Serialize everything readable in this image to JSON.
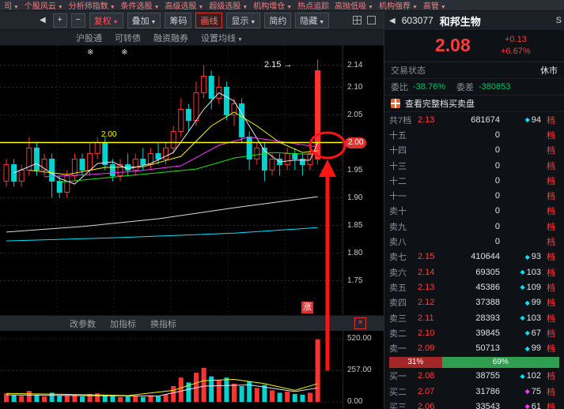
{
  "top_menu": {
    "arrow": "▼",
    "items": [
      {
        "label": "司",
        "arrow": true
      },
      {
        "label": "个股风云",
        "arrow": true
      },
      {
        "label": "分析师指数",
        "arrow": true
      },
      {
        "label": "条件选股",
        "arrow": true
      },
      {
        "label": "高级选股",
        "arrow": true
      },
      {
        "label": "超级选股",
        "arrow": true
      },
      {
        "label": "机构增仓",
        "arrow": true
      },
      {
        "label": "热点追踪",
        "arrow": false
      },
      {
        "label": "高抛低吸",
        "arrow": true
      },
      {
        "label": "机构强荐",
        "arrow": true
      },
      {
        "label": "高管",
        "arrow": true
      }
    ]
  },
  "toolbar": {
    "back_icon": "◀",
    "zoom_in": "+",
    "zoom_out": "−",
    "buttons": [
      {
        "label": "复权",
        "arrow": true,
        "accent": "red-text",
        "name": "fuquan-button"
      },
      {
        "label": "叠加",
        "arrow": true,
        "name": "overlay-button"
      },
      {
        "label": "筹码",
        "arrow": false,
        "name": "chips-button"
      },
      {
        "label": "画线",
        "arrow": false,
        "accent": "red-border",
        "name": "draw-line-button"
      },
      {
        "label": "显示",
        "arrow": true,
        "name": "display-button"
      },
      {
        "label": "简约",
        "arrow": false,
        "name": "simple-mode-button"
      },
      {
        "label": "隐藏",
        "arrow": true,
        "name": "hide-button"
      }
    ]
  },
  "subnav": {
    "arrow": "▼",
    "items": [
      {
        "label": "沪股通",
        "name": "subnav-hugutong"
      },
      {
        "label": "可转债",
        "name": "subnav-convertible-bond"
      },
      {
        "label": "融资融券",
        "name": "subnav-margin-trading"
      }
    ],
    "ma_button": "设置均线"
  },
  "chart": {
    "stars": "※ ※",
    "high_text": "2.15",
    "high_arrow": "→",
    "line_label": "2.00",
    "rise_badge": "涨",
    "hline": {
      "price": 2.0,
      "color": "#ffff00"
    },
    "axis": [
      {
        "t": "2.14",
        "p": 2.14
      },
      {
        "t": "2.10",
        "p": 2.1
      },
      {
        "t": "2.05",
        "p": 2.05
      },
      {
        "t": "2.00",
        "p": 2.0,
        "hl": true
      },
      {
        "t": "1.95",
        "p": 1.95
      },
      {
        "t": "1.90",
        "p": 1.9
      },
      {
        "t": "1.85",
        "p": 1.85
      },
      {
        "t": "1.80",
        "p": 1.8
      },
      {
        "t": "1.75",
        "p": 1.75
      }
    ],
    "candles": [
      [
        1.93,
        1.96,
        1.92,
        1.97
      ],
      [
        1.96,
        1.93,
        1.92,
        1.97
      ],
      [
        1.93,
        1.95,
        1.92,
        1.96
      ],
      [
        1.95,
        1.99,
        1.94,
        2.01
      ],
      [
        1.99,
        1.95,
        1.94,
        2.0
      ],
      [
        1.95,
        1.97,
        1.94,
        1.98
      ],
      [
        1.97,
        1.93,
        1.9,
        1.98
      ],
      [
        1.93,
        1.91,
        1.9,
        1.94
      ],
      [
        1.91,
        1.94,
        1.9,
        1.95
      ],
      [
        1.94,
        1.97,
        1.93,
        1.98
      ],
      [
        1.97,
        1.95,
        1.94,
        1.98
      ],
      [
        1.95,
        1.98,
        1.94,
        2.0
      ],
      [
        1.98,
        2.0,
        1.97,
        2.01
      ],
      [
        2.0,
        1.96,
        1.95,
        2.01
      ],
      [
        1.96,
        1.94,
        1.93,
        1.97
      ],
      [
        1.94,
        1.96,
        1.93,
        1.97
      ],
      [
        1.96,
        1.95,
        1.94,
        1.98
      ],
      [
        1.95,
        1.97,
        1.94,
        1.98
      ],
      [
        1.97,
        1.96,
        1.95,
        1.99
      ],
      [
        1.96,
        1.98,
        1.95,
        1.99
      ],
      [
        1.98,
        1.97,
        1.96,
        2.0
      ],
      [
        1.97,
        1.99,
        1.96,
        2.0
      ],
      [
        1.99,
        2.02,
        1.98,
        2.03
      ],
      [
        2.02,
        2.06,
        2.01,
        2.08
      ],
      [
        2.06,
        2.04,
        2.02,
        2.07
      ],
      [
        2.04,
        2.09,
        2.03,
        2.11
      ],
      [
        2.09,
        2.12,
        2.08,
        2.14
      ],
      [
        2.12,
        2.08,
        2.06,
        2.13
      ],
      [
        2.08,
        2.1,
        2.07,
        2.12
      ],
      [
        2.1,
        2.05,
        2.04,
        2.11
      ],
      [
        2.05,
        2.07,
        2.03,
        2.08
      ],
      [
        2.07,
        2.01,
        2.0,
        2.08
      ],
      [
        2.01,
        1.97,
        1.95,
        2.02
      ],
      [
        1.97,
        1.99,
        1.96,
        2.0
      ],
      [
        1.99,
        1.95,
        1.93,
        2.0
      ],
      [
        1.95,
        1.97,
        1.94,
        1.98
      ],
      [
        1.97,
        1.96,
        1.94,
        1.98
      ],
      [
        1.96,
        1.98,
        1.95,
        1.99
      ],
      [
        1.98,
        1.97,
        1.95,
        1.99
      ],
      [
        1.97,
        1.96,
        1.94,
        1.98
      ],
      [
        1.96,
        1.98,
        1.95,
        1.99
      ],
      [
        1.97,
        2.13,
        1.96,
        2.15
      ]
    ],
    "ma_polylines": [
      {
        "color": "#e8e8e8",
        "pts": [
          [
            1,
            1.945
          ],
          [
            4,
            1.962
          ],
          [
            7,
            1.935
          ],
          [
            9,
            1.925
          ],
          [
            12,
            1.962
          ],
          [
            14,
            1.965
          ],
          [
            16,
            1.952
          ],
          [
            19,
            1.962
          ],
          [
            22,
            1.982
          ],
          [
            24,
            2.02
          ],
          [
            26,
            2.06
          ],
          [
            28,
            2.09
          ],
          [
            30,
            2.075
          ],
          [
            32,
            2.03
          ],
          [
            34,
            1.985
          ],
          [
            36,
            1.965
          ],
          [
            38,
            1.968
          ],
          [
            40,
            1.968
          ],
          [
            41,
            2.0
          ]
        ]
      },
      {
        "color": "#f5f500",
        "pts": [
          [
            3,
            1.95
          ],
          [
            8,
            1.942
          ],
          [
            13,
            1.955
          ],
          [
            18,
            1.956
          ],
          [
            23,
            1.975
          ],
          [
            27,
            2.03
          ],
          [
            30,
            2.055
          ],
          [
            33,
            2.03
          ],
          [
            36,
            2.0
          ],
          [
            39,
            1.982
          ],
          [
            41,
            1.985
          ]
        ]
      },
      {
        "color": "#ff35ff",
        "pts": [
          [
            5,
            1.938
          ],
          [
            11,
            1.942
          ],
          [
            17,
            1.948
          ],
          [
            23,
            1.958
          ],
          [
            28,
            1.995
          ],
          [
            32,
            2.01
          ],
          [
            36,
            2.002
          ],
          [
            41,
            1.992
          ]
        ]
      },
      {
        "color": "#19e619",
        "pts": [
          [
            7,
            1.928
          ],
          [
            13,
            1.936
          ],
          [
            19,
            1.944
          ],
          [
            25,
            1.952
          ],
          [
            30,
            1.972
          ],
          [
            35,
            1.982
          ],
          [
            41,
            1.978
          ]
        ]
      },
      {
        "color": "#dcdcdc",
        "pts": [
          [
            0,
            1.838
          ],
          [
            10,
            1.848
          ],
          [
            20,
            1.862
          ],
          [
            30,
            1.882
          ],
          [
            41,
            1.902
          ]
        ]
      },
      {
        "color": "#00e5ff",
        "pts": [
          [
            0,
            1.822
          ],
          [
            15,
            1.828
          ],
          [
            30,
            1.836
          ],
          [
            41,
            1.846
          ]
        ]
      }
    ]
  },
  "bottom_bar": {
    "items": [
      "改参数",
      "加指标",
      "换指标"
    ],
    "close_icon": "×"
  },
  "volume": {
    "axis": [
      {
        "t": "520.00",
        "v": 520
      },
      {
        "t": "257.00",
        "v": 257
      },
      {
        "t": "0.00",
        "v": 0
      }
    ],
    "bars": [
      70,
      55,
      50,
      90,
      60,
      45,
      75,
      50,
      55,
      60,
      45,
      65,
      70,
      55,
      50,
      40,
      45,
      50,
      40,
      55,
      45,
      60,
      130,
      200,
      160,
      240,
      280,
      210,
      180,
      200,
      150,
      130,
      170,
      115,
      140,
      95,
      75,
      85,
      65,
      60,
      75,
      515
    ],
    "ma_polylines": [
      {
        "color": "#f5f500",
        "pts": [
          [
            0,
            70
          ],
          [
            8,
            62
          ],
          [
            16,
            52
          ],
          [
            22,
            95
          ],
          [
            26,
            175
          ],
          [
            30,
            185
          ],
          [
            34,
            150
          ],
          [
            38,
            95
          ],
          [
            41,
            150
          ]
        ]
      },
      {
        "color": "#e8e8e8",
        "pts": [
          [
            0,
            58
          ],
          [
            10,
            52
          ],
          [
            20,
            48
          ],
          [
            26,
            130
          ],
          [
            32,
            140
          ],
          [
            38,
            85
          ],
          [
            41,
            115
          ]
        ]
      }
    ]
  },
  "stock_header": {
    "back_icon": "◀",
    "code": "603077",
    "name": "和邦生物",
    "suffix": "S"
  },
  "quote": {
    "price": "2.08",
    "change": "+0.13",
    "change_pct": "+6.67%"
  },
  "status": {
    "label": "交易状态",
    "value": "休市"
  },
  "weibi": {
    "label": "委比",
    "value": "-38.76%",
    "label2": "委差",
    "value2": "-380853"
  },
  "full_levels_link": {
    "text": "查看完整档买卖盘"
  },
  "order_panel": {
    "marker": "档",
    "diamond": "◆",
    "summary": {
      "label": "共7档",
      "price": "2.13",
      "volume": "681674",
      "count": "94",
      "diamond_color": "cyan"
    },
    "sells": [
      {
        "label": "十五",
        "price": "",
        "volume": "0",
        "count": "",
        "diamond_color": null
      },
      {
        "label": "十四",
        "price": "",
        "volume": "0",
        "count": "",
        "diamond_color": null
      },
      {
        "label": "十三",
        "price": "",
        "volume": "0",
        "count": "",
        "diamond_color": null
      },
      {
        "label": "十二",
        "price": "",
        "volume": "0",
        "count": "",
        "diamond_color": null
      },
      {
        "label": "十一",
        "price": "",
        "volume": "0",
        "count": "",
        "diamond_color": null
      },
      {
        "label": "卖十",
        "price": "",
        "volume": "0",
        "count": "",
        "diamond_color": null
      },
      {
        "label": "卖九",
        "price": "",
        "volume": "0",
        "count": "",
        "diamond_color": null
      },
      {
        "label": "卖八",
        "price": "",
        "volume": "0",
        "count": "",
        "diamond_color": null
      },
      {
        "label": "卖七",
        "price": "2.15",
        "volume": "410644",
        "count": "93",
        "diamond_color": "cyan"
      },
      {
        "label": "卖六",
        "price": "2.14",
        "volume": "69305",
        "count": "103",
        "diamond_color": "cyan"
      },
      {
        "label": "卖五",
        "price": "2.13",
        "volume": "45386",
        "count": "109",
        "diamond_color": "cyan"
      },
      {
        "label": "卖四",
        "price": "2.12",
        "volume": "37388",
        "count": "99",
        "diamond_color": "cyan"
      },
      {
        "label": "卖三",
        "price": "2.11",
        "volume": "28393",
        "count": "103",
        "diamond_color": "cyan"
      },
      {
        "label": "卖二",
        "price": "2.10",
        "volume": "39845",
        "count": "67",
        "diamond_color": "cyan"
      },
      {
        "label": "卖一",
        "price": "2.09",
        "volume": "50713",
        "count": "99",
        "diamond_color": "cyan"
      }
    ],
    "ratio": {
      "buy": "31%",
      "sell": "69%",
      "buy_width": 31
    },
    "buys": [
      {
        "label": "买一",
        "price": "2.08",
        "volume": "38755",
        "count": "102",
        "diamond_color": "cyan"
      },
      {
        "label": "买二",
        "price": "2.07",
        "volume": "31786",
        "count": "75",
        "diamond_color": "magenta"
      },
      {
        "label": "买三",
        "price": "2.06",
        "volume": "33543",
        "count": "61",
        "diamond_color": "magenta"
      }
    ]
  },
  "colors": {
    "up": "#ff3232",
    "down": "#00d2d2",
    "red": "#ff3b3b",
    "green": "#00c060",
    "yellow": "#ffff00",
    "cyan": "#00e5ff",
    "magenta": "#ff35ff",
    "annotation": "#ff1414"
  }
}
